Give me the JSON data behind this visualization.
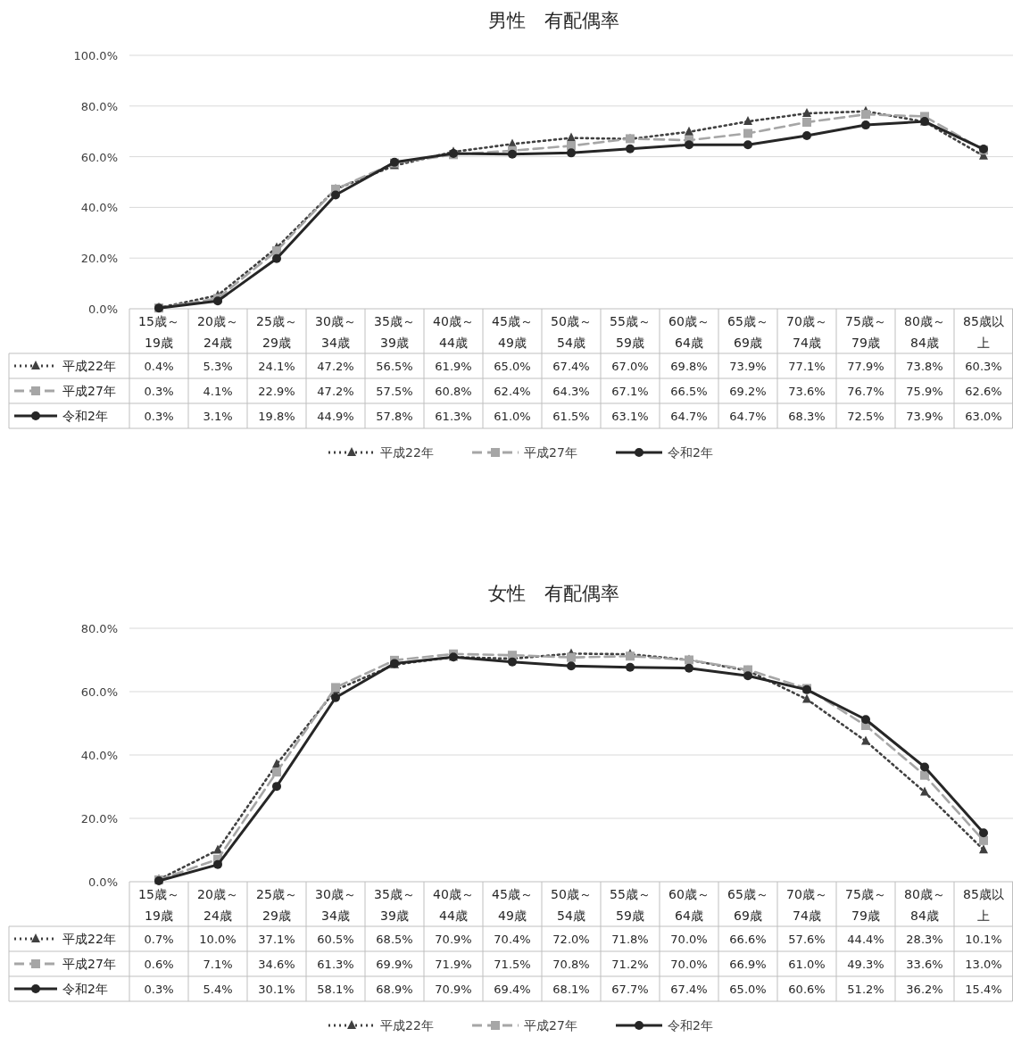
{
  "chart_data": [
    {
      "type": "line",
      "title": "男性　有配偶率",
      "categories": [
        "15歳～19歳",
        "20歳～24歳",
        "25歳～29歳",
        "30歳～34歳",
        "35歳～39歳",
        "40歳～44歳",
        "45歳～49歳",
        "50歳～54歳",
        "55歳～59歳",
        "60歳～64歳",
        "65歳～69歳",
        "70歳～74歳",
        "75歳～79歳",
        "80歳～84歳",
        "85歳以上"
      ],
      "ylim": [
        0,
        100
      ],
      "yticks": [
        {
          "value": 0,
          "label": "0.0%"
        },
        {
          "value": 20,
          "label": "20.0%"
        },
        {
          "value": 40,
          "label": "40.0%"
        },
        {
          "value": 60,
          "label": "60.0%"
        },
        {
          "value": 80,
          "label": "80.0%"
        },
        {
          "value": 100,
          "label": "100.0%"
        }
      ],
      "grid": "y",
      "legend": "bottom",
      "series": [
        {
          "name": "平成22年",
          "color": "#404040",
          "marker": "triangle",
          "line_style": "dotted",
          "values": [
            0.4,
            5.3,
            24.1,
            47.2,
            56.5,
            61.9,
            65.0,
            67.4,
            67.0,
            69.8,
            73.9,
            77.1,
            77.9,
            73.8,
            60.3
          ],
          "value_labels": [
            "0.4%",
            "5.3%",
            "24.1%",
            "47.2%",
            "56.5%",
            "61.9%",
            "65.0%",
            "67.4%",
            "67.0%",
            "69.8%",
            "73.9%",
            "77.1%",
            "77.9%",
            "73.8%",
            "60.3%"
          ]
        },
        {
          "name": "平成27年",
          "color": "#a6a6a6",
          "marker": "square",
          "line_style": "dashed",
          "values": [
            0.3,
            4.1,
            22.9,
            47.2,
            57.5,
            60.8,
            62.4,
            64.3,
            67.1,
            66.5,
            69.2,
            73.6,
            76.7,
            75.9,
            62.6
          ],
          "value_labels": [
            "0.3%",
            "4.1%",
            "22.9%",
            "47.2%",
            "57.5%",
            "60.8%",
            "62.4%",
            "64.3%",
            "67.1%",
            "66.5%",
            "69.2%",
            "73.6%",
            "76.7%",
            "75.9%",
            "62.6%"
          ]
        },
        {
          "name": "令和2年",
          "color": "#262626",
          "marker": "circle",
          "line_style": "solid",
          "values": [
            0.3,
            3.1,
            19.8,
            44.9,
            57.8,
            61.3,
            61.0,
            61.5,
            63.1,
            64.7,
            64.7,
            68.3,
            72.5,
            73.9,
            63.0
          ],
          "value_labels": [
            "0.3%",
            "3.1%",
            "19.8%",
            "44.9%",
            "57.8%",
            "61.3%",
            "61.0%",
            "61.5%",
            "63.1%",
            "64.7%",
            "64.7%",
            "68.3%",
            "72.5%",
            "73.9%",
            "63.0%"
          ]
        }
      ]
    },
    {
      "type": "line",
      "title": "女性　有配偶率",
      "categories": [
        "15歳～19歳",
        "20歳～24歳",
        "25歳～29歳",
        "30歳～34歳",
        "35歳～39歳",
        "40歳～44歳",
        "45歳～49歳",
        "50歳～54歳",
        "55歳～59歳",
        "60歳～64歳",
        "65歳～69歳",
        "70歳～74歳",
        "75歳～79歳",
        "80歳～84歳",
        "85歳以上"
      ],
      "ylim": [
        0,
        80
      ],
      "yticks": [
        {
          "value": 0,
          "label": "0.0%"
        },
        {
          "value": 20,
          "label": "20.0%"
        },
        {
          "value": 40,
          "label": "40.0%"
        },
        {
          "value": 60,
          "label": "60.0%"
        },
        {
          "value": 80,
          "label": "80.0%"
        }
      ],
      "grid": "y",
      "legend": "bottom",
      "series": [
        {
          "name": "平成22年",
          "color": "#404040",
          "marker": "triangle",
          "line_style": "dotted",
          "values": [
            0.7,
            10.0,
            37.1,
            60.5,
            68.5,
            70.9,
            70.4,
            72.0,
            71.8,
            70.0,
            66.6,
            57.6,
            44.4,
            28.3,
            10.1
          ],
          "value_labels": [
            "0.7%",
            "10.0%",
            "37.1%",
            "60.5%",
            "68.5%",
            "70.9%",
            "70.4%",
            "72.0%",
            "71.8%",
            "70.0%",
            "66.6%",
            "57.6%",
            "44.4%",
            "28.3%",
            "10.1%"
          ]
        },
        {
          "name": "平成27年",
          "color": "#a6a6a6",
          "marker": "square",
          "line_style": "dashed",
          "values": [
            0.6,
            7.1,
            34.6,
            61.3,
            69.9,
            71.9,
            71.5,
            70.8,
            71.2,
            70.0,
            66.9,
            61.0,
            49.3,
            33.6,
            13.0
          ],
          "value_labels": [
            "0.6%",
            "7.1%",
            "34.6%",
            "61.3%",
            "69.9%",
            "71.9%",
            "71.5%",
            "70.8%",
            "71.2%",
            "70.0%",
            "66.9%",
            "61.0%",
            "49.3%",
            "33.6%",
            "13.0%"
          ]
        },
        {
          "name": "令和2年",
          "color": "#262626",
          "marker": "circle",
          "line_style": "solid",
          "values": [
            0.3,
            5.4,
            30.1,
            58.1,
            68.9,
            70.9,
            69.4,
            68.1,
            67.7,
            67.4,
            65.0,
            60.6,
            51.2,
            36.2,
            15.4
          ],
          "value_labels": [
            "0.3%",
            "5.4%",
            "30.1%",
            "58.1%",
            "68.9%",
            "70.9%",
            "69.4%",
            "68.1%",
            "67.7%",
            "67.4%",
            "65.0%",
            "60.6%",
            "51.2%",
            "36.2%",
            "15.4%"
          ]
        }
      ]
    }
  ]
}
